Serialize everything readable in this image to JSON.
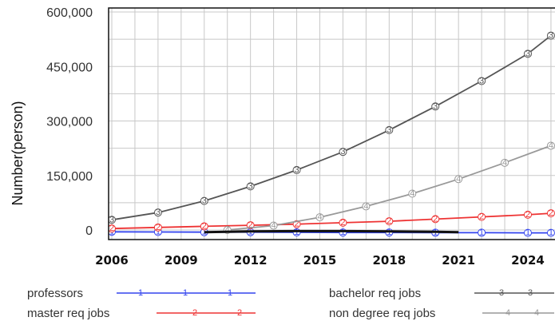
{
  "chart_data": {
    "type": "line",
    "ylabel": "Number(person)",
    "xlabel": "",
    "xlim": [
      2006,
      2025
    ],
    "ylim": [
      0,
      600000
    ],
    "grid": true,
    "legend_position": "bottom",
    "y_ticks": [
      "600,000",
      "450,000",
      "300,000",
      "150,000",
      "0"
    ],
    "y_tick_values": [
      600000,
      450000,
      300000,
      150000,
      0
    ],
    "x_ticks": [
      "2006",
      "2009",
      "2012",
      "2015",
      "2018",
      "2021",
      "2024"
    ],
    "x_tick_values": [
      2006,
      2009,
      2012,
      2015,
      2018,
      2021,
      2024
    ],
    "series": [
      {
        "name": "professors",
        "color": "#3344ee",
        "marker": "1",
        "x": [
          2006,
          2008,
          2010,
          2012,
          2014,
          2016,
          2018,
          2020,
          2022,
          2024,
          2025
        ],
        "values": [
          -5000,
          -5500,
          -6000,
          -6000,
          -6500,
          -7000,
          -7000,
          -7500,
          -7500,
          -8000,
          -8000
        ]
      },
      {
        "name": "master req jobs",
        "color": "#ee3333",
        "marker": "2",
        "x": [
          2006,
          2008,
          2010,
          2012,
          2014,
          2016,
          2018,
          2020,
          2022,
          2024,
          2025
        ],
        "values": [
          4000,
          7000,
          10000,
          13000,
          16000,
          20000,
          24000,
          30000,
          36000,
          42000,
          46000
        ]
      },
      {
        "name": "bachelor req jobs",
        "color": "#555555",
        "marker": "3",
        "x": [
          2006,
          2008,
          2010,
          2012,
          2014,
          2016,
          2018,
          2020,
          2022,
          2024,
          2025
        ],
        "values": [
          28000,
          48000,
          80000,
          120000,
          165000,
          215000,
          275000,
          340000,
          410000,
          485000,
          535000
        ]
      },
      {
        "name": "non degree req jobs",
        "color": "#999999",
        "marker": "4",
        "x": [
          2011,
          2013,
          2015,
          2017,
          2019,
          2021,
          2023,
          2025
        ],
        "values": [
          0,
          12000,
          35000,
          65000,
          100000,
          140000,
          185000,
          232000
        ]
      },
      {
        "name": "",
        "color": "#111111",
        "marker": "",
        "x": [
          2010,
          2012,
          2014,
          2016,
          2018,
          2020,
          2021
        ],
        "values": [
          -6000,
          -4000,
          -3000,
          -3000,
          -4000,
          -5000,
          -6000
        ]
      }
    ]
  }
}
